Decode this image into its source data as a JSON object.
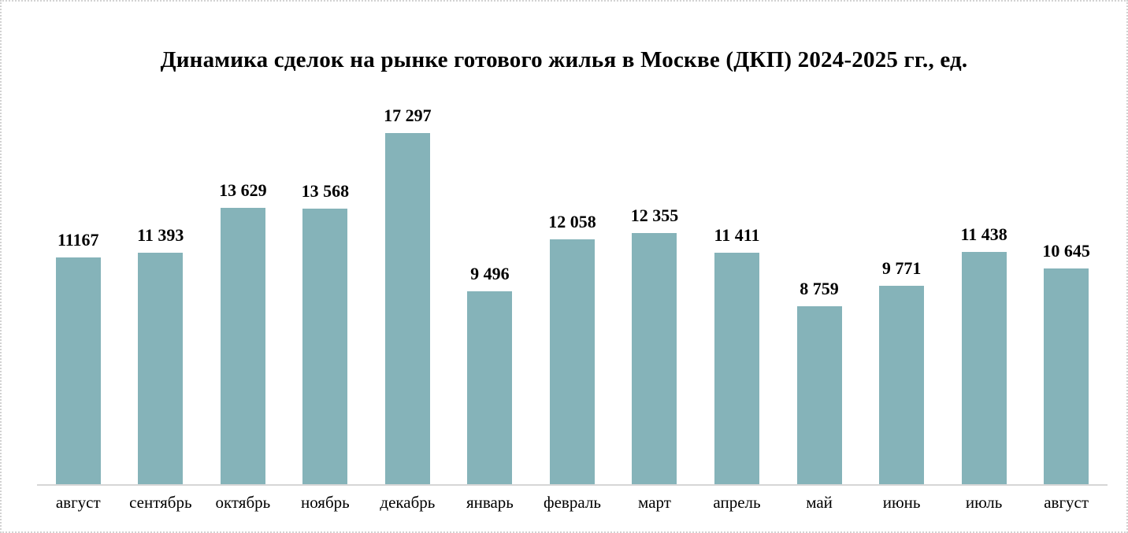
{
  "title": "Динамика сделок на рынке готового жилья в Москве (ДКП) 2024-2025 гг., ед.",
  "chart_data": {
    "type": "bar",
    "title": "Динамика сделок на рынке готового жилья в Москве (ДКП) 2024-2025 гг., ед.",
    "categories": [
      "август",
      "сентябрь",
      "октябрь",
      "ноябрь",
      "декабрь",
      "январь",
      "февраль",
      "март",
      "апрель",
      "май",
      "июнь",
      "июль",
      "август"
    ],
    "values": [
      11167,
      11393,
      13629,
      13568,
      17297,
      9496,
      12058,
      12355,
      11411,
      8759,
      9771,
      11438,
      10645
    ],
    "value_labels": [
      "11167",
      "11 393",
      "13 629",
      "13 568",
      "17 297",
      "9 496",
      "12 058",
      "12 355",
      "11 411",
      "8 759",
      "9 771",
      "11 438",
      "10 645"
    ],
    "xlabel": "",
    "ylabel": "",
    "ylim": [
      0,
      17297
    ],
    "grid": false,
    "legend": "none",
    "bar_color": "#85b3b9",
    "axis_line_color": "#d6d6d6"
  }
}
